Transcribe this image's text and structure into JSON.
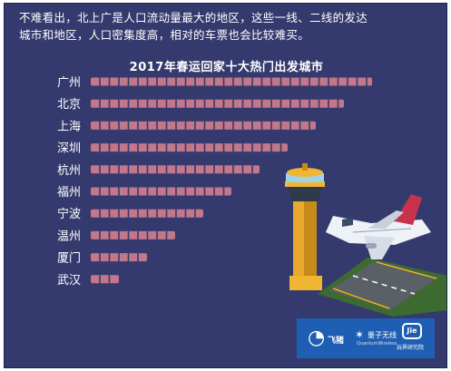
{
  "intro": {
    "line1": "不难看出，北上广是人口流动量最大的地区，这些一线、二线的发达",
    "line2": "城市和地区，人口密集度高，相对的车票也会比较难买。"
  },
  "colors": {
    "background": "#353a6e",
    "bar": "#c2778a",
    "text": "#ffffff",
    "brand_box": "#1f5fb3"
  },
  "branding": {
    "feizhu": "飞猪",
    "lianzi": "量子无线",
    "lianzi_sub": "QuantumWireless",
    "jie": "Jie",
    "jie_sub": "玩界研究院"
  },
  "chart_data": {
    "type": "bar",
    "orientation": "horizontal",
    "title": "2017年春运回家十大热门出发城市",
    "categories": [
      "广州",
      "北京",
      "上海",
      "深圳",
      "杭州",
      "福州",
      "宁波",
      "温州",
      "厦门",
      "武汉"
    ],
    "values": [
      10,
      9,
      8,
      7,
      6,
      5,
      4,
      3,
      2,
      1
    ],
    "grid": false,
    "legend": "none",
    "xlabel": "",
    "ylabel": ""
  }
}
